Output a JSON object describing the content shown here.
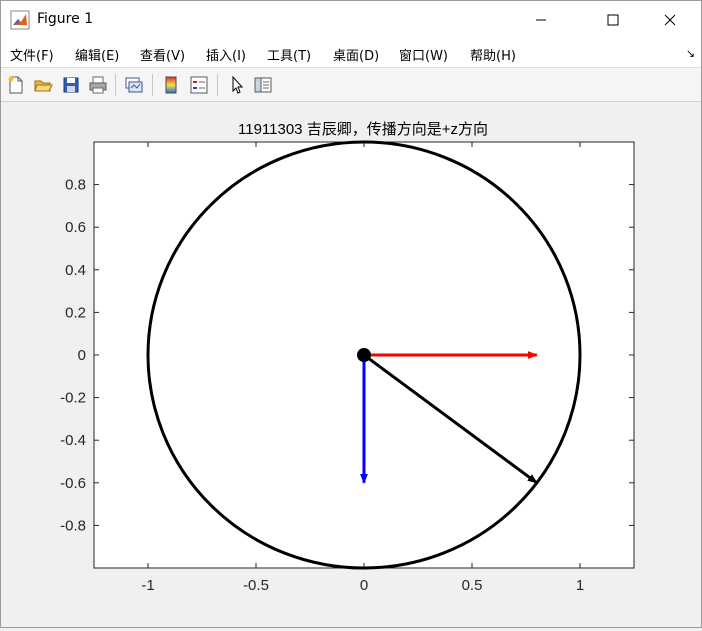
{
  "window": {
    "title": "Figure 1",
    "controls": [
      "minimize",
      "maximize",
      "close"
    ]
  },
  "menu": {
    "items": [
      {
        "label": "文件(F)"
      },
      {
        "label": "编辑(E)"
      },
      {
        "label": "查看(V)"
      },
      {
        "label": "插入(I)"
      },
      {
        "label": "工具(T)"
      },
      {
        "label": "桌面(D)"
      },
      {
        "label": "窗口(W)"
      },
      {
        "label": "帮助(H)"
      }
    ],
    "overflow_arrow": "↘"
  },
  "toolbar": {
    "buttons": [
      "new-figure-icon",
      "open-file-icon",
      "save-icon",
      "print-icon",
      "link-plot-icon",
      "colorbar-icon",
      "legend-icon",
      "edit-plot-arrow-icon",
      "property-inspector-icon"
    ]
  },
  "chart_data": {
    "type": "vector-plot",
    "title": "11911303 吉辰卿，传播方向是+z方向",
    "xlim": [
      -1.25,
      1.25
    ],
    "ylim": [
      -1,
      1
    ],
    "xticks": [
      -1,
      -0.5,
      0,
      0.5,
      1
    ],
    "xtick_labels": [
      "-1",
      "-0.5",
      "0",
      "0.5",
      "1"
    ],
    "yticks": [
      0.8,
      0.6,
      0.4,
      0.2,
      0,
      -0.2,
      -0.4,
      -0.6,
      -0.8
    ],
    "ytick_labels": [
      "0.8",
      "0.6",
      "0.4",
      "0.2",
      "0",
      "-0.2",
      "-0.4",
      "-0.6",
      "-0.8"
    ],
    "circle": {
      "center": [
        0,
        0
      ],
      "radius": 1,
      "color": "#000000"
    },
    "origin_marker": {
      "x": 0,
      "y": 0,
      "color": "#000000"
    },
    "vectors": [
      {
        "from": [
          0,
          0
        ],
        "to": [
          0.8,
          0
        ],
        "color": "#ff0000"
      },
      {
        "from": [
          0,
          0
        ],
        "to": [
          0,
          -0.6
        ],
        "color": "#0000ff"
      },
      {
        "from": [
          0,
          0
        ],
        "to": [
          0.8,
          -0.6
        ],
        "color": "#000000"
      }
    ],
    "grid": false
  }
}
